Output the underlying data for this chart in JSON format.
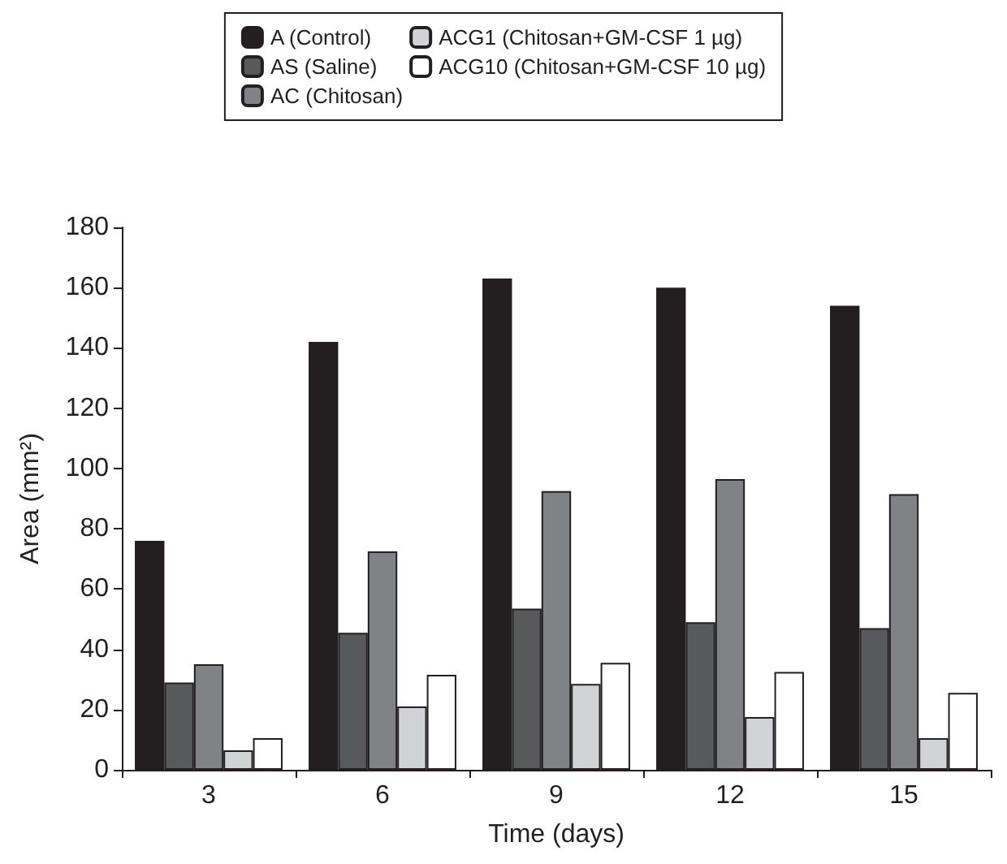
{
  "chart_data": {
    "type": "bar",
    "xlabel": "Time (days)",
    "ylabel": "Area (mm²)",
    "categories": [
      "3",
      "6",
      "9",
      "12",
      "15"
    ],
    "series": [
      {
        "name": "A (Control)",
        "color": "#231f20",
        "values": [
          76,
          142,
          163,
          160,
          154
        ]
      },
      {
        "name": "AS (Saline)",
        "color": "#58595b",
        "values": [
          29,
          45.5,
          53.5,
          49,
          47
        ]
      },
      {
        "name": "AC (Chitosan)",
        "color": "#808285",
        "values": [
          35,
          72.5,
          92.5,
          96.5,
          91.5
        ]
      },
      {
        "name": "ACG1 (Chitosan+GM-CSF 1 µg)",
        "color": "#d1d3d4",
        "values": [
          6.5,
          21,
          28.5,
          17.5,
          10.5
        ]
      },
      {
        "name": "ACG10 (Chitosan+GM-CSF 10 µg)",
        "color": "#ffffff",
        "values": [
          10.5,
          31.5,
          35.5,
          32.5,
          25.5
        ]
      }
    ],
    "ylim": [
      0,
      180
    ],
    "yticks": [
      0,
      20,
      40,
      60,
      80,
      100,
      120,
      140,
      160,
      180
    ],
    "grid": false,
    "legend": "top"
  }
}
